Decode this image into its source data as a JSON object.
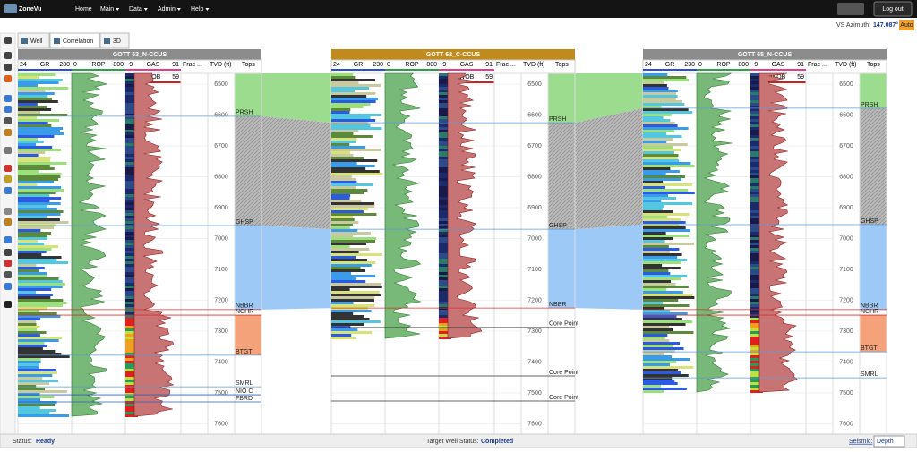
{
  "navbar": {
    "brand": "ZoneVu",
    "menu": [
      "Home",
      "Main",
      "Data",
      "Admin",
      "Help"
    ],
    "logout": "Log out"
  },
  "tabs": [
    "Well",
    "Correlation",
    "3D"
  ],
  "azimuth": {
    "label": "VS Azimuth:",
    "value": "147.087°",
    "mode": "Auto"
  },
  "wells": [
    {
      "name": "GOTT 63_N-CCUS",
      "tracks": [
        {
          "min": "24",
          "name": "GR",
          "max": "230"
        },
        {
          "min": "0",
          "name": "ROP",
          "max": "800"
        },
        {
          "min": "-9",
          "name": "GAS",
          "max": "91"
        },
        {
          "min": "-41",
          "name": "WOB",
          "max": "59"
        }
      ],
      "frac": "Frac ...",
      "tvd": "TVD (ft)",
      "tops_header": "Tops",
      "depths": [
        6500,
        6600,
        6700,
        6800,
        6900,
        7000,
        7100,
        7200,
        7300,
        7400,
        7500,
        7600
      ],
      "tops": [
        {
          "name": "PRSH",
          "depth": 6604,
          "color": "#5b9bd5"
        },
        {
          "name": "GHSP",
          "depth": 6958,
          "color": "#5b9bd5"
        },
        {
          "name": "NBBR",
          "depth": 7230,
          "color": "#d9302c"
        },
        {
          "name": "NCHR",
          "depth": 7248,
          "color": "#d9302c"
        },
        {
          "name": "BTGT",
          "depth": 7378,
          "color": "#5b9bd5"
        },
        {
          "name": "SMRL",
          "depth": 7480,
          "color": "#5b9bd5"
        },
        {
          "name": "NIO C",
          "depth": 7506,
          "color": "#2d5fb4"
        },
        {
          "name": "FBRD",
          "depth": 7529,
          "color": "#2d5fb4"
        }
      ]
    },
    {
      "name": "GOTT 62_C-CCUS",
      "tracks": [
        {
          "min": "24",
          "name": "GR",
          "max": "230"
        },
        {
          "min": "0",
          "name": "ROP",
          "max": "800"
        },
        {
          "min": "-9",
          "name": "GAS",
          "max": "91"
        },
        {
          "min": "-41",
          "name": "WOB",
          "max": "59"
        }
      ],
      "frac": "Frac ...",
      "tvd": "TVD (ft)",
      "tops_header": "Tops",
      "depths": [
        6500,
        6600,
        6700,
        6800,
        6900,
        7000,
        7100,
        7200,
        7300,
        7400,
        7500,
        7600
      ],
      "tops": [
        {
          "name": "PRSH",
          "depth": 6625,
          "color": "#5b9bd5"
        },
        {
          "name": "GHSP",
          "depth": 6970,
          "color": "#5b9bd5"
        },
        {
          "name": "NBBR",
          "depth": 7225,
          "color": "#d9302c"
        },
        {
          "name": "Core Point",
          "depth": 7288,
          "color": "#333333"
        },
        {
          "name": "Core Point",
          "depth": 7445,
          "color": "#333333"
        },
        {
          "name": "Core Point",
          "depth": 7526,
          "color": "#333333"
        }
      ]
    },
    {
      "name": "GOTT 65_N-CCUS",
      "tracks": [
        {
          "min": "24",
          "name": "GR",
          "max": "230"
        },
        {
          "min": "0",
          "name": "ROP",
          "max": "800"
        },
        {
          "min": "-9",
          "name": "GAS",
          "max": "91"
        },
        {
          "min": "-41",
          "name": "WOB",
          "max": "59"
        }
      ],
      "frac": "Frac ...",
      "tvd": "TVD (ft)",
      "tops_header": "Tops",
      "depths": [
        6500,
        6600,
        6700,
        6800,
        6900,
        7000,
        7100,
        7200,
        7300,
        7400,
        7500,
        7600
      ],
      "tops": [
        {
          "name": "PRSH",
          "depth": 6578,
          "color": "#5b9bd5"
        },
        {
          "name": "GHSP",
          "depth": 6955,
          "color": "#5b9bd5"
        },
        {
          "name": "NBBR",
          "depth": 7230,
          "color": "#d9302c"
        },
        {
          "name": "NCHR",
          "depth": 7248,
          "color": "#d9302c"
        },
        {
          "name": "BTGT",
          "depth": 7367,
          "color": "#5b9bd5"
        },
        {
          "name": "SMRL",
          "depth": 7451,
          "color": "#5b9bd5"
        }
      ]
    }
  ],
  "status": {
    "label": "Status:",
    "value": "Ready",
    "target_label": "Target Well Status:",
    "target_value": "Completed",
    "seismic_label": "Seismic:",
    "seismic_value": "Depth"
  }
}
